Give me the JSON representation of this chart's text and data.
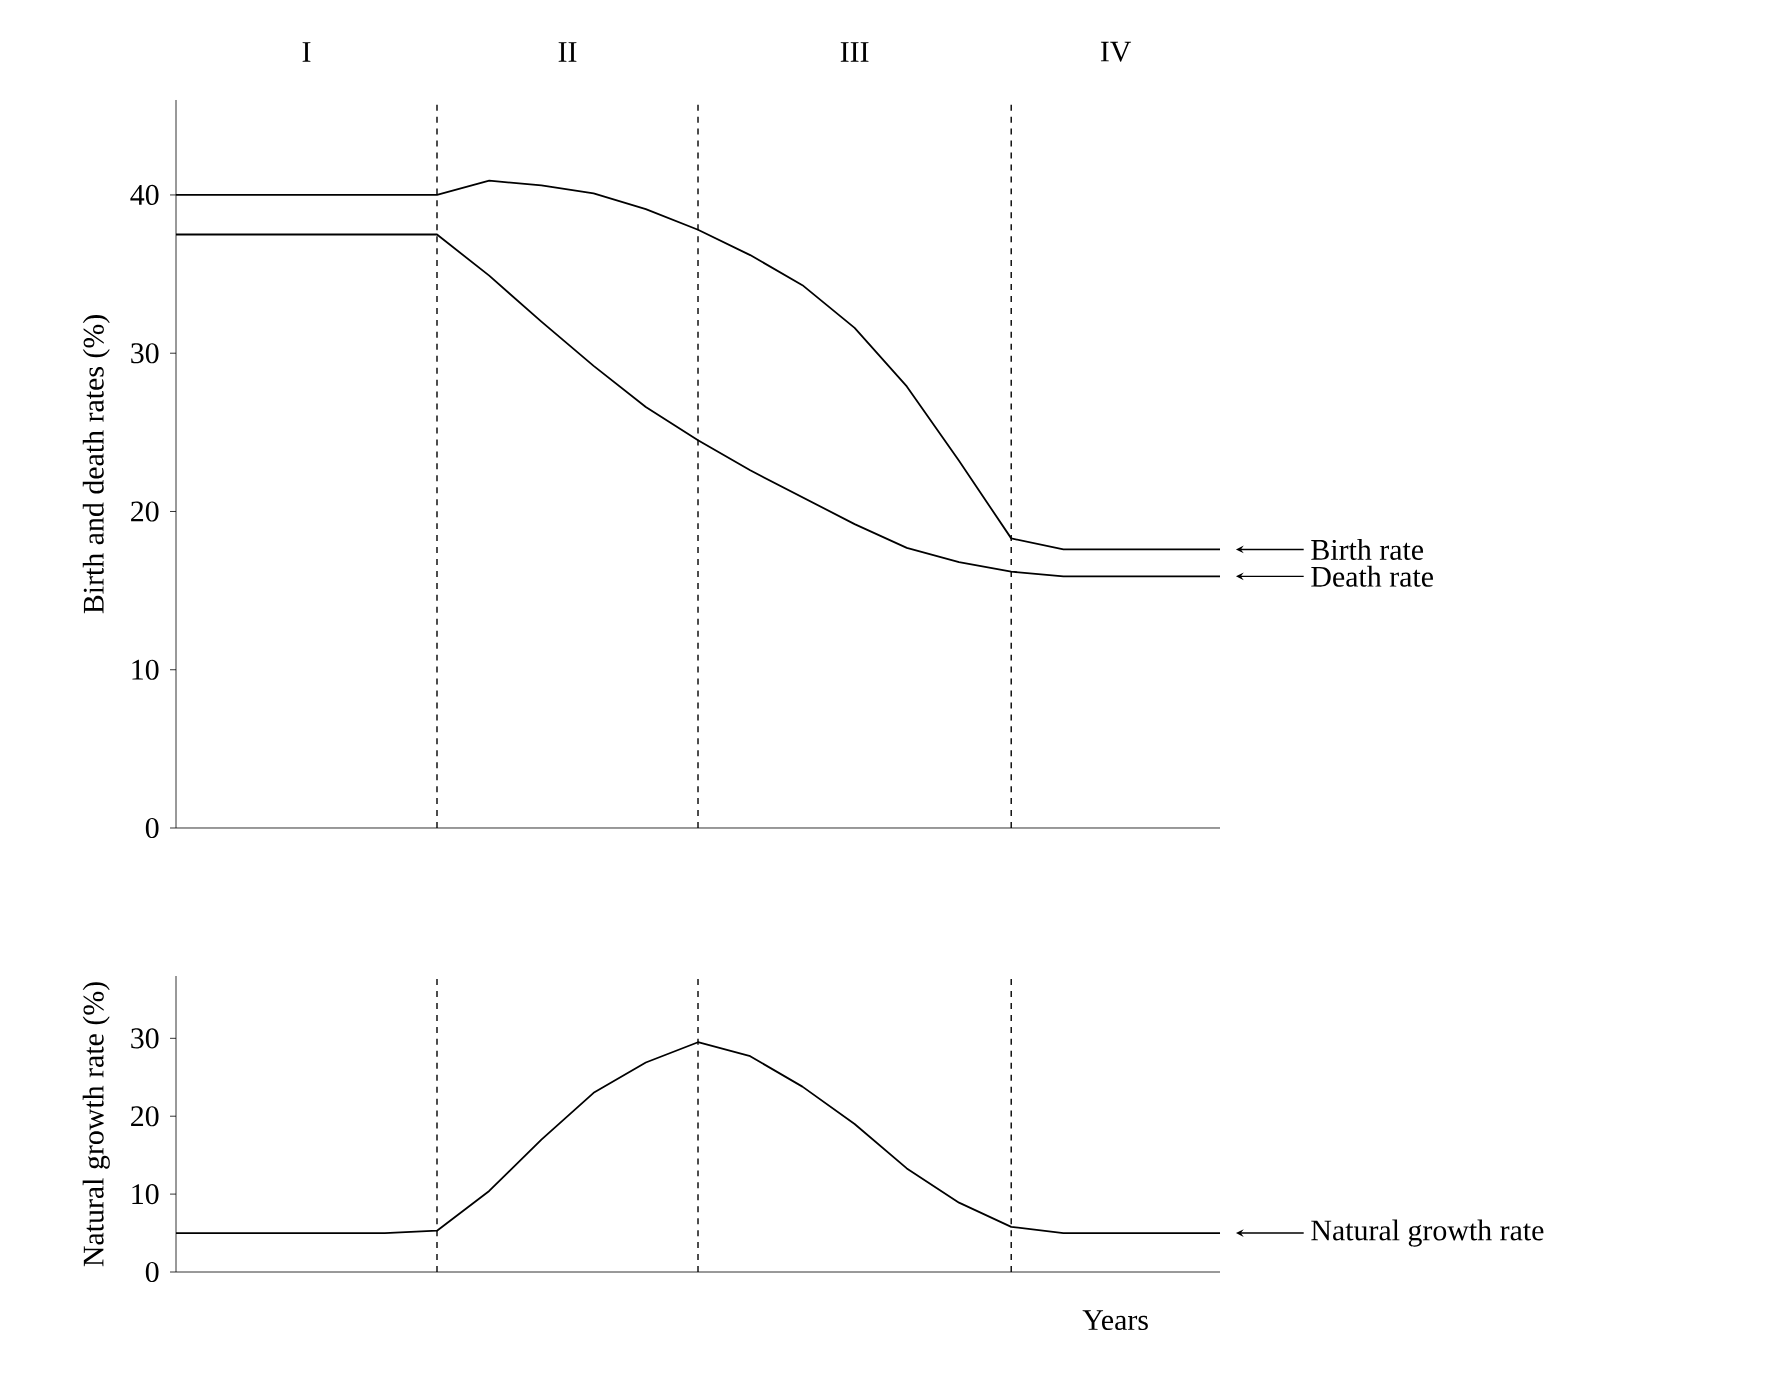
{
  "chart_data": [
    {
      "type": "line",
      "ylabel": "Birth and death rates (%)",
      "categories": [
        null,
        null,
        null,
        null,
        null,
        null,
        null,
        null,
        null,
        null,
        null,
        null,
        null,
        null,
        null,
        null,
        null,
        null,
        null,
        null,
        null
      ],
      "ylim": [
        0,
        46
      ],
      "yticks": [
        0,
        10,
        20,
        30,
        40
      ],
      "tick_labels": "y",
      "grid": "x",
      "legend": "right",
      "annotations": [
        "I",
        "II",
        "III",
        "IV"
      ],
      "series": [
        {
          "name": "Birth rate",
          "color": "#000000",
          "values": [
            40,
            40,
            40,
            40,
            40,
            40,
            40.9,
            40.6,
            40.1,
            39.1,
            37.8,
            36.2,
            34.3,
            31.6,
            27.9,
            23.2,
            18.3,
            17.6,
            17.6,
            17.6,
            17.6
          ]
        },
        {
          "name": "Death rate",
          "color": "#000000",
          "values": [
            37.5,
            37.5,
            37.5,
            37.5,
            37.5,
            37.5,
            34.9,
            32,
            29.2,
            26.6,
            24.5,
            22.6,
            20.9,
            19.2,
            17.7,
            16.8,
            16.2,
            15.9,
            15.9,
            15.9,
            15.9
          ]
        }
      ]
    },
    {
      "type": "line",
      "ylabel": "Natural growth rate (%)",
      "xlabel": "Years",
      "categories": [
        null,
        null,
        null,
        null,
        null,
        null,
        null,
        null,
        null,
        null,
        null,
        null,
        null,
        null,
        null,
        null,
        null,
        null,
        null,
        null,
        null
      ],
      "ylim": [
        0,
        38
      ],
      "yticks": [
        0,
        10,
        20,
        30
      ],
      "tick_labels": "y",
      "grid": "x",
      "legend": "right",
      "series": [
        {
          "name": "Natural growth rate",
          "color": "#000000",
          "values": [
            5,
            5,
            5,
            5,
            5,
            5.3,
            10.4,
            17,
            23,
            26.9,
            29.5,
            27.7,
            23.8,
            19,
            13.3,
            8.9,
            5.8,
            5,
            5,
            5,
            5
          ]
        }
      ]
    }
  ]
}
